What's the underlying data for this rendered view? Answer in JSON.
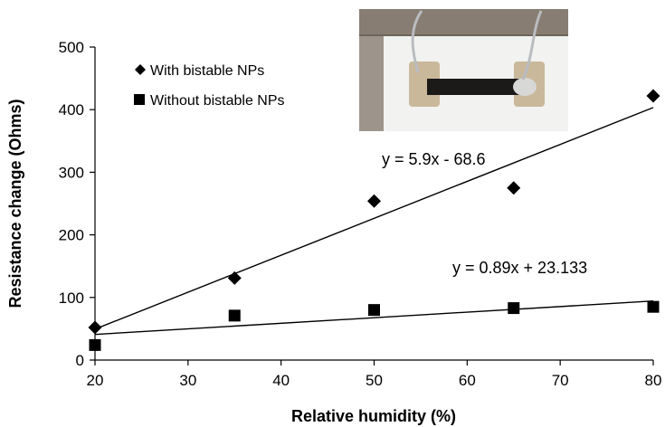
{
  "chart_data": {
    "type": "scatter",
    "xlabel": "Relative humidity (%)",
    "ylabel": "Resistance change (Ohms)",
    "xlim": [
      20,
      80
    ],
    "ylim": [
      0,
      500
    ],
    "xticks": [
      20,
      30,
      40,
      50,
      60,
      70,
      80
    ],
    "yticks": [
      0,
      100,
      200,
      300,
      400,
      500
    ],
    "grid": false,
    "legend_position": "top-left",
    "series": [
      {
        "name": "With bistable NPs",
        "marker": "diamond",
        "color": "#000000",
        "points": [
          [
            20,
            52
          ],
          [
            35,
            131
          ],
          [
            50,
            254
          ],
          [
            65,
            275
          ],
          [
            80,
            422
          ]
        ],
        "trendline": {
          "slope": 5.9,
          "intercept": -68.6,
          "label": "y = 5.9x - 68.6"
        }
      },
      {
        "name": "Without bistable NPs",
        "marker": "square",
        "color": "#000000",
        "points": [
          [
            20,
            24
          ],
          [
            35,
            71
          ],
          [
            50,
            80
          ],
          [
            65,
            83
          ],
          [
            80,
            85
          ]
        ],
        "trendline": {
          "slope": 0.89,
          "intercept": 23.133,
          "label": "y = 0.89x + 23.133"
        }
      }
    ],
    "inset_photo": {
      "icon": "sensor-device-photo",
      "colors": {
        "frame": "#6e655b",
        "board": "#f2f2f0",
        "pad": "#c9b89a",
        "strip": "#1c1a18",
        "wire": "#b9bcc0"
      }
    }
  }
}
